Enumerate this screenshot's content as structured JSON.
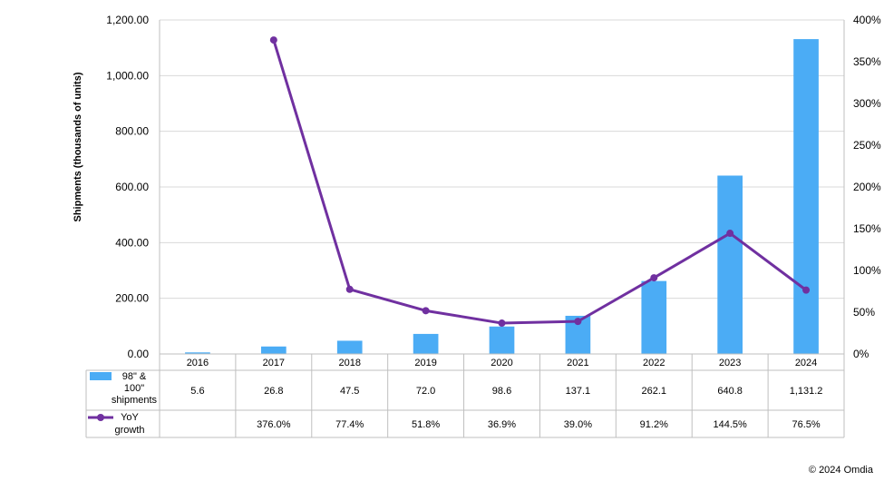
{
  "chart_data": {
    "type": "bar+line",
    "categories": [
      "2016",
      "2017",
      "2018",
      "2019",
      "2020",
      "2021",
      "2022",
      "2023",
      "2024"
    ],
    "series": [
      {
        "name": "98\" & 100\" shipments",
        "type": "bar",
        "axis": "left",
        "values": [
          5.6,
          26.8,
          47.5,
          72.0,
          98.6,
          137.1,
          262.1,
          640.8,
          1131.2
        ],
        "labels": [
          "5.6",
          "26.8",
          "47.5",
          "72.0",
          "98.6",
          "137.1",
          "262.1",
          "640.8",
          "1,131.2"
        ],
        "color": "#4BACF5"
      },
      {
        "name": "YoY growth",
        "type": "line",
        "axis": "right",
        "values": [
          null,
          376.0,
          77.4,
          51.8,
          36.9,
          39.0,
          91.2,
          144.5,
          76.5
        ],
        "labels": [
          "",
          "376.0%",
          "77.4%",
          "51.8%",
          "36.9%",
          "39.0%",
          "91.2%",
          "144.5%",
          "76.5%"
        ],
        "color": "#7030A0"
      }
    ],
    "ylabel": "Shipments (thousands of units)",
    "ylim": [
      0,
      1200
    ],
    "yticks": [
      "0.00",
      "200.00",
      "400.00",
      "600.00",
      "800.00",
      "1,000.00",
      "1,200.00"
    ],
    "y2lim": [
      0,
      400
    ],
    "y2ticks": [
      "0%",
      "50%",
      "100%",
      "150%",
      "200%",
      "250%",
      "300%",
      "350%",
      "400%"
    ],
    "grid": true,
    "legend": "data-table"
  },
  "table_labels": {
    "shipments": [
      "98\" &",
      "100\"",
      "shipments"
    ],
    "growth": [
      "YoY",
      "growth"
    ]
  },
  "copyright": "© 2024 Omdia"
}
